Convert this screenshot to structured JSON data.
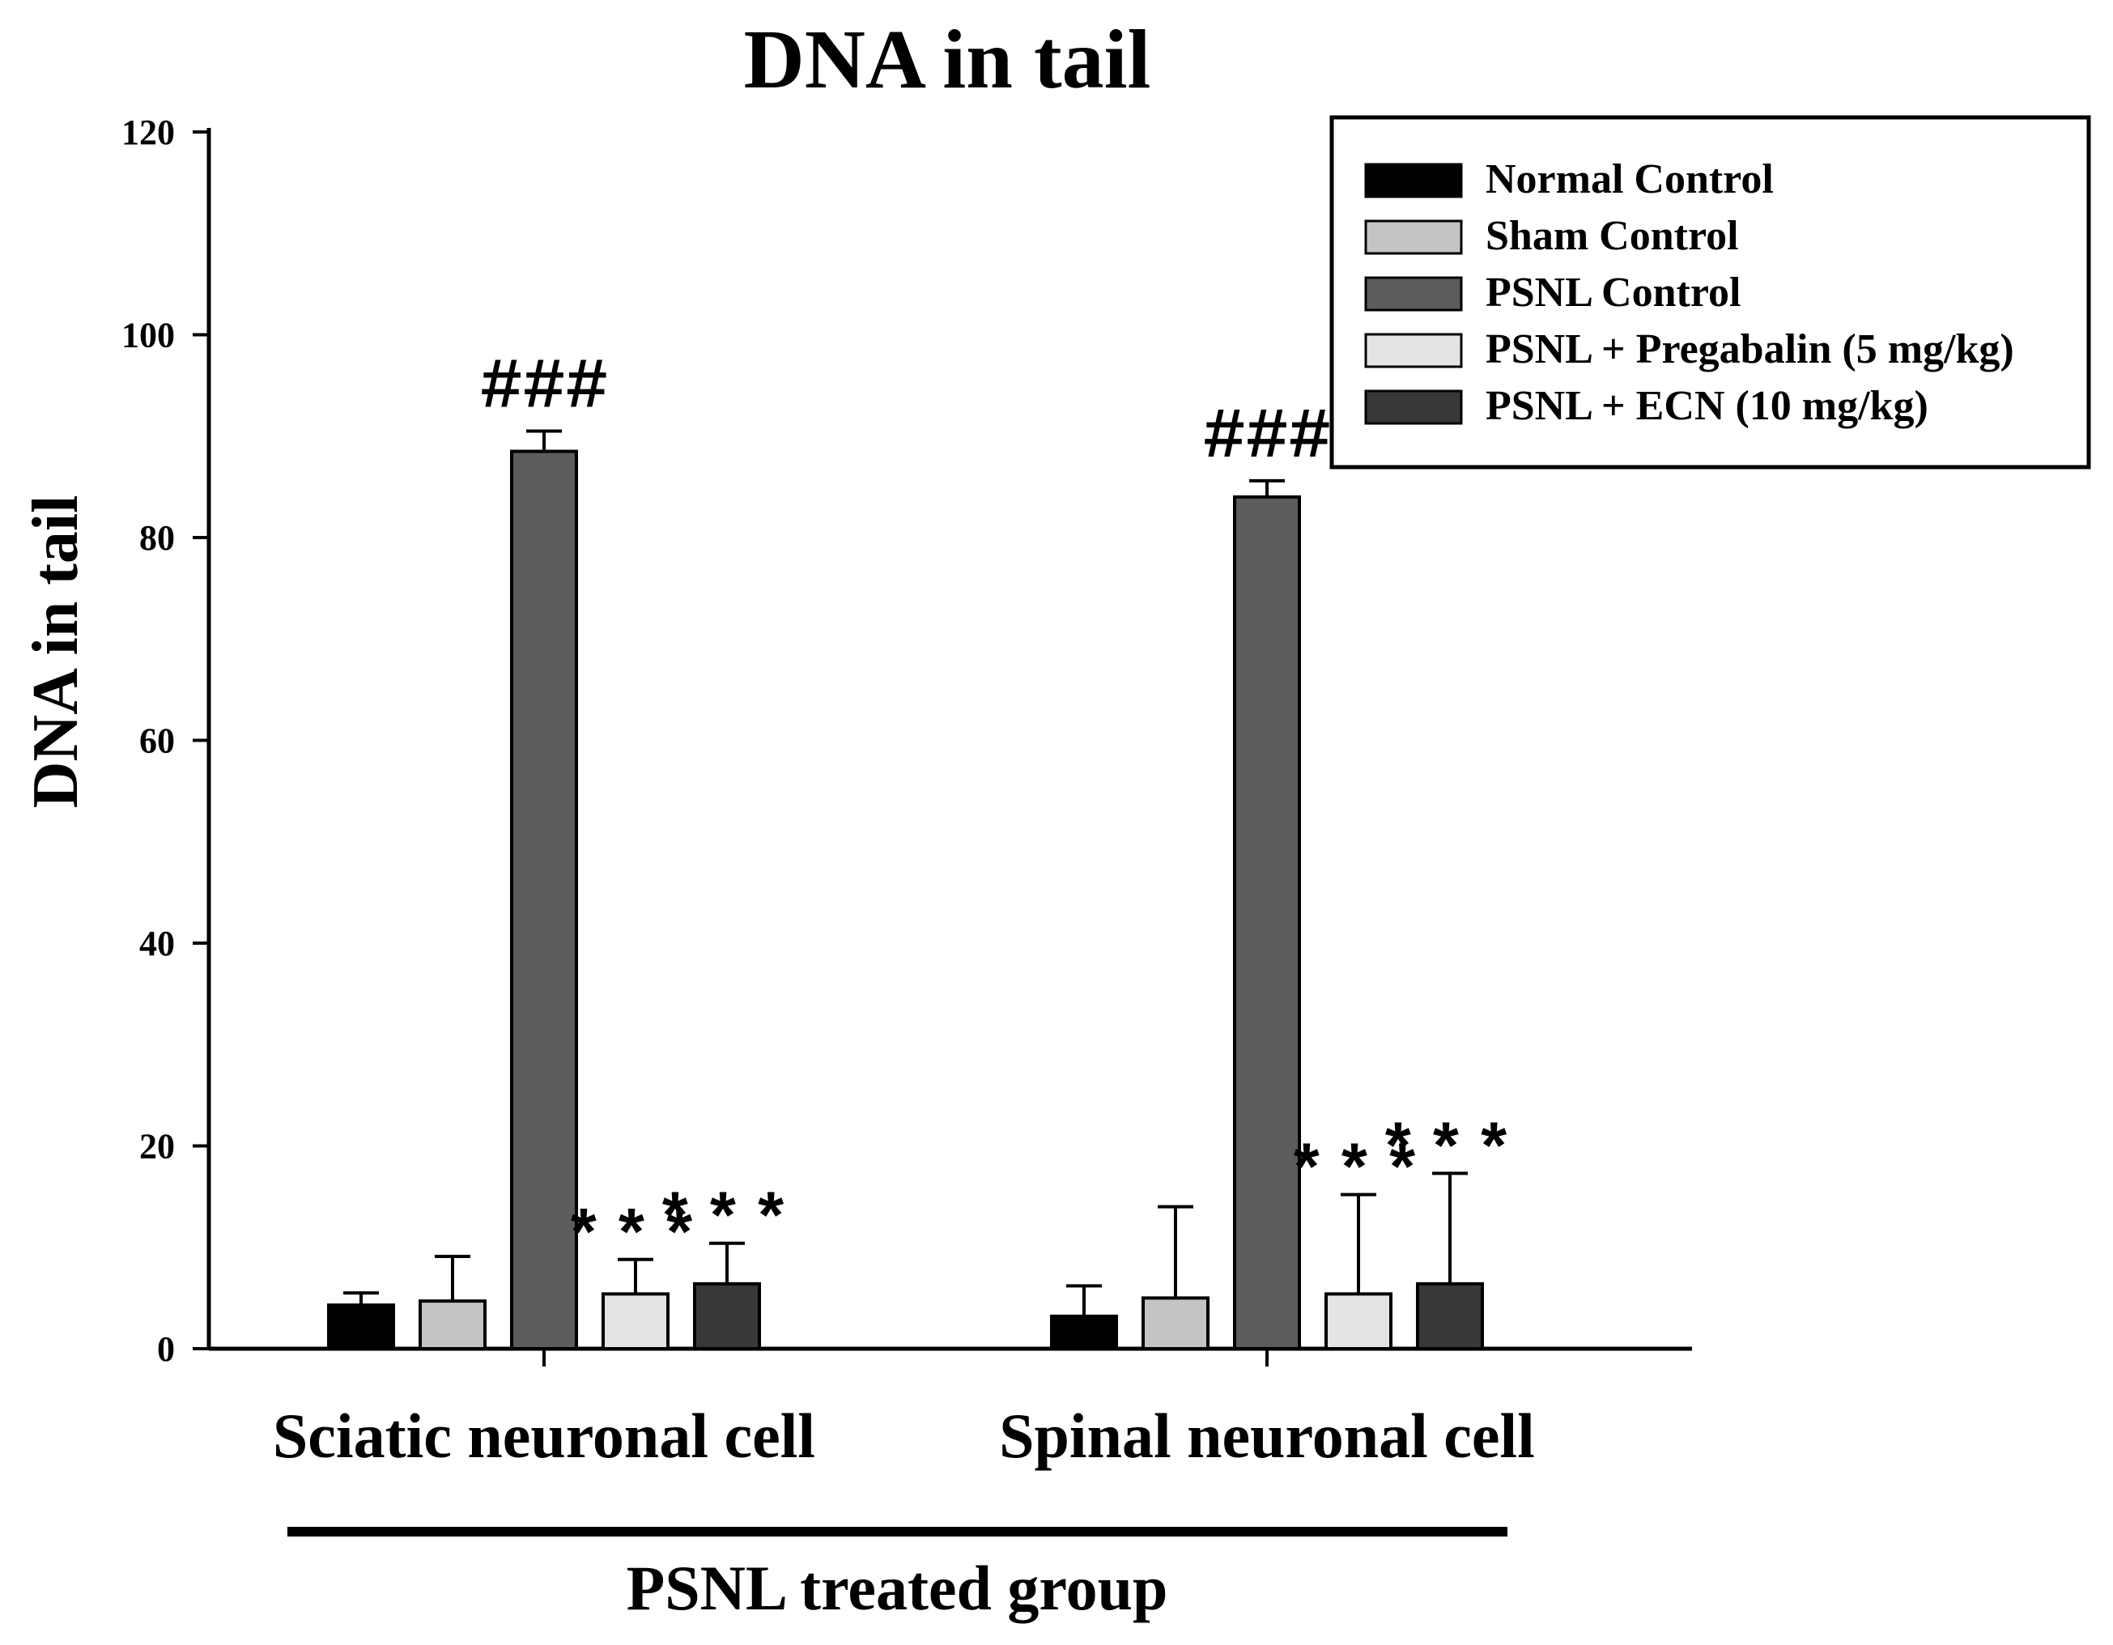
{
  "chart_data": {
    "type": "bar",
    "title": "DNA in tail",
    "ylabel": "DNA in tail",
    "xlabel": "",
    "ylim": [
      0,
      120
    ],
    "yticks": [
      0,
      20,
      40,
      60,
      80,
      100,
      120
    ],
    "grid": false,
    "legend_position": "top-right",
    "categories": [
      "Sciatic neuronal cell",
      "Spinal neuronal cell"
    ],
    "group_label": "PSNL treated group",
    "series": [
      {
        "name": "Normal Control",
        "color": "#000000",
        "values": [
          4.3,
          3.2
        ],
        "errors": [
          1.2,
          3.0
        ],
        "annotations": [
          "",
          ""
        ]
      },
      {
        "name": "Sham Control",
        "color": "#c4c4c4",
        "values": [
          4.7,
          5.0
        ],
        "errors": [
          4.4,
          9.0
        ],
        "annotations": [
          "",
          ""
        ]
      },
      {
        "name": "PSNL Control",
        "color": "#5c5c5c",
        "values": [
          88.5,
          84.0
        ],
        "errors": [
          2.0,
          1.6
        ],
        "annotations": [
          "###",
          "###"
        ]
      },
      {
        "name": "PSNL + Pregabalin (5 mg/kg)",
        "color": "#e4e4e4",
        "values": [
          5.4,
          5.4
        ],
        "errors": [
          3.4,
          9.8
        ],
        "annotations": [
          "***",
          "***"
        ]
      },
      {
        "name": "PSNL + ECN (10 mg/kg)",
        "color": "#383838",
        "values": [
          6.4,
          6.4
        ],
        "errors": [
          4.0,
          10.9
        ],
        "annotations": [
          "***",
          "***"
        ]
      }
    ]
  }
}
